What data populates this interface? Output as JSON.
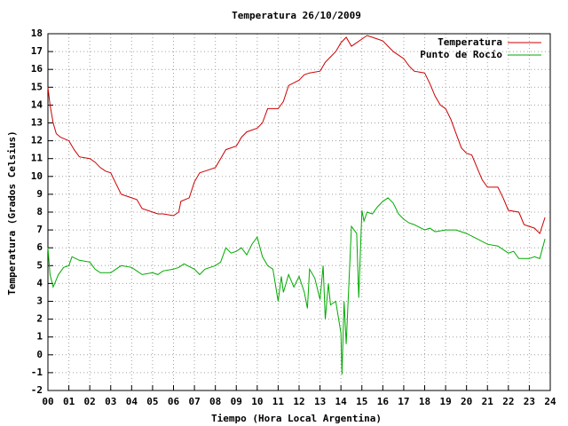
{
  "chart_data": {
    "type": "line",
    "title": "Temperatura 26/10/2009",
    "x_label": "Tiempo (Hora Local Argentina)",
    "y_label": "Temperatura (Grados Celsius)",
    "xlim": [
      0,
      24
    ],
    "ylim": [
      -2,
      18
    ],
    "xticks": [
      {
        "value": 0,
        "label": "00"
      },
      {
        "value": 1,
        "label": "01"
      },
      {
        "value": 2,
        "label": "02"
      },
      {
        "value": 3,
        "label": "03"
      },
      {
        "value": 4,
        "label": "04"
      },
      {
        "value": 5,
        "label": "05"
      },
      {
        "value": 6,
        "label": "06"
      },
      {
        "value": 7,
        "label": "07"
      },
      {
        "value": 8,
        "label": "08"
      },
      {
        "value": 9,
        "label": "09"
      },
      10,
      11,
      12,
      13,
      14,
      15,
      16,
      17,
      18,
      19,
      20,
      21,
      22,
      23,
      24
    ],
    "yticks": [
      -2,
      -1,
      0,
      1,
      2,
      3,
      4,
      5,
      6,
      7,
      8,
      9,
      10,
      11,
      12,
      13,
      14,
      15,
      16,
      17,
      18
    ],
    "grid": true,
    "legend": "top-right",
    "series": [
      {
        "name": "Temperatura",
        "color": "#cc0000",
        "x": [
          0,
          0.1,
          0.25,
          0.4,
          0.6,
          1,
          1.25,
          1.5,
          2,
          2.25,
          2.5,
          2.75,
          3,
          3.25,
          3.5,
          3.75,
          4,
          4.25,
          4.5,
          5,
          5.25,
          5.5,
          6,
          6.25,
          6.35,
          6.75,
          7,
          7.25,
          7.5,
          8,
          8.25,
          8.5,
          9,
          9.25,
          9.5,
          10,
          10.25,
          10.5,
          11,
          11.25,
          11.5,
          12,
          12.25,
          12.5,
          13,
          13.25,
          13.5,
          13.75,
          14,
          14.25,
          14.5,
          14.75,
          15,
          15.25,
          15.5,
          15.75,
          16,
          16.25,
          16.5,
          17,
          17.25,
          17.5,
          18,
          18.25,
          18.5,
          18.75,
          19,
          19.25,
          19.5,
          19.75,
          20,
          20.25,
          20.5,
          20.75,
          21,
          21.5,
          21.75,
          22,
          22.5,
          22.75,
          23,
          23.25,
          23.5,
          23.75
        ],
        "values": [
          15.0,
          14,
          13,
          12.4,
          12.2,
          12.0,
          11.5,
          11.1,
          11.0,
          10.8,
          10.5,
          10.3,
          10.2,
          9.6,
          9.0,
          8.9,
          8.8,
          8.7,
          8.2,
          8.0,
          7.9,
          7.9,
          7.8,
          8.0,
          8.6,
          8.8,
          9.7,
          10.2,
          10.3,
          10.5,
          11.0,
          11.5,
          11.7,
          12.2,
          12.5,
          12.7,
          13.0,
          13.8,
          13.8,
          14.2,
          15.1,
          15.4,
          15.7,
          15.8,
          15.9,
          16.4,
          16.7,
          17.0,
          17.5,
          17.8,
          17.3,
          17.5,
          17.7,
          17.9,
          17.8,
          17.7,
          17.6,
          17.3,
          17.0,
          16.6,
          16.2,
          15.9,
          15.8,
          15.2,
          14.5,
          14.0,
          13.8,
          13.2,
          12.4,
          11.6,
          11.3,
          11.2,
          10.5,
          9.8,
          9.4,
          9.4,
          8.8,
          8.1,
          8.0,
          7.3,
          7.2,
          7.1,
          6.8,
          7.7
        ]
      },
      {
        "name": "Punto de Rocío",
        "color": "#00aa00",
        "x": [
          0,
          0.1,
          0.25,
          0.5,
          0.75,
          1,
          1.15,
          1.5,
          2,
          2.25,
          2.5,
          3,
          3.25,
          3.5,
          4,
          4.25,
          4.5,
          5,
          5.25,
          5.5,
          6,
          6.25,
          6.5,
          7,
          7.25,
          7.5,
          8,
          8.25,
          8.5,
          8.75,
          9,
          9.25,
          9.5,
          9.75,
          10,
          10.25,
          10.5,
          10.75,
          11,
          11.15,
          11.25,
          11.5,
          11.75,
          12,
          12.25,
          12.4,
          12.5,
          12.75,
          13,
          13.15,
          13.25,
          13.4,
          13.5,
          13.75,
          14,
          14.05,
          14.15,
          14.25,
          14.5,
          14.75,
          14.85,
          15,
          15.1,
          15.25,
          15.5,
          15.75,
          16,
          16.25,
          16.5,
          16.75,
          17,
          17.25,
          17.5,
          18,
          18.25,
          18.5,
          19,
          19.5,
          20,
          20.5,
          21,
          21.5,
          22,
          22.25,
          22.5,
          23,
          23.25,
          23.5,
          23.75
        ],
        "values": [
          6.0,
          4.5,
          3.8,
          4.5,
          4.9,
          5.0,
          5.5,
          5.3,
          5.2,
          4.8,
          4.6,
          4.6,
          4.8,
          5.0,
          4.9,
          4.7,
          4.5,
          4.6,
          4.5,
          4.7,
          4.8,
          4.9,
          5.1,
          4.8,
          4.5,
          4.8,
          5.0,
          5.2,
          6.0,
          5.7,
          5.8,
          6.0,
          5.6,
          6.2,
          6.6,
          5.5,
          5.0,
          4.8,
          3.0,
          4.4,
          3.5,
          4.5,
          3.8,
          4.4,
          3.5,
          2.6,
          4.8,
          4.3,
          3.1,
          5.0,
          2.0,
          4.0,
          2.8,
          3.0,
          1.2,
          -1.1,
          3.0,
          0.6,
          7.2,
          6.8,
          3.2,
          8.1,
          7.5,
          8.0,
          7.9,
          8.3,
          8.6,
          8.8,
          8.5,
          7.9,
          7.6,
          7.4,
          7.3,
          7.0,
          7.1,
          6.9,
          7.0,
          7.0,
          6.8,
          6.5,
          6.2,
          6.1,
          5.7,
          5.8,
          5.4,
          5.4,
          5.5,
          5.4,
          6.5
        ]
      }
    ]
  }
}
